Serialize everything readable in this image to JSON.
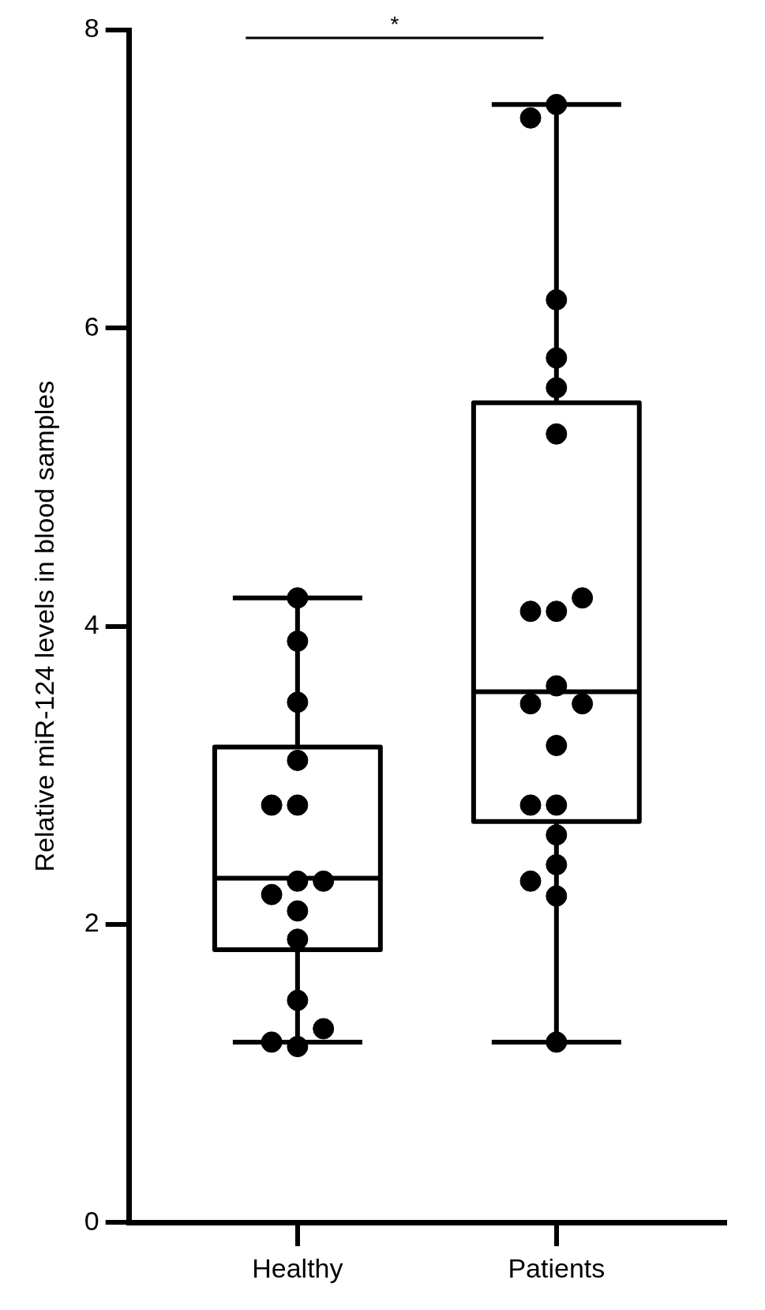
{
  "chart_data": {
    "type": "box",
    "ylabel": "Relative miR-124 levels in blood samples",
    "categories": [
      "Healthy",
      "Patients"
    ],
    "color": "#000000",
    "boxes": [
      {
        "low": 1.21,
        "q1": 1.83,
        "median": 2.31,
        "q3": 3.19,
        "high": 4.19
      },
      {
        "low": 1.21,
        "q1": 2.69,
        "median": 3.56,
        "q3": 5.5,
        "high": 7.5
      }
    ],
    "series": [
      {
        "type": "scatter",
        "color": "#000000",
        "x": [
          "Healthy",
          "Healthy",
          "Healthy",
          "Healthy",
          "Healthy",
          "Healthy",
          "Healthy",
          "Healthy",
          "Healthy",
          "Healthy",
          "Healthy",
          "Healthy",
          "Healthy",
          "Healthy",
          "Healthy",
          "Patients",
          "Patients",
          "Patients",
          "Patients",
          "Patients",
          "Patients",
          "Patients",
          "Patients",
          "Patients",
          "Patients",
          "Patients",
          "Patients",
          "Patients",
          "Patients",
          "Patients",
          "Patients",
          "Patients",
          "Patients",
          "Patients",
          "Patients"
        ],
        "values": [
          1.18,
          1.21,
          1.3,
          1.49,
          1.9,
          2.09,
          2.2,
          2.29,
          2.29,
          2.8,
          2.8,
          3.1,
          3.49,
          3.9,
          4.19,
          7.5,
          7.41,
          6.19,
          5.8,
          5.6,
          5.29,
          4.1,
          4.1,
          4.19,
          3.6,
          3.48,
          3.48,
          3.2,
          2.8,
          2.8,
          2.6,
          2.4,
          2.29,
          2.19,
          1.21
        ]
      }
    ],
    "ylim": [
      0,
      8
    ],
    "yticks": [
      0,
      2,
      4,
      6,
      8
    ],
    "grid": false,
    "legend": false,
    "marker": "circle",
    "annotations": [
      "*"
    ]
  }
}
